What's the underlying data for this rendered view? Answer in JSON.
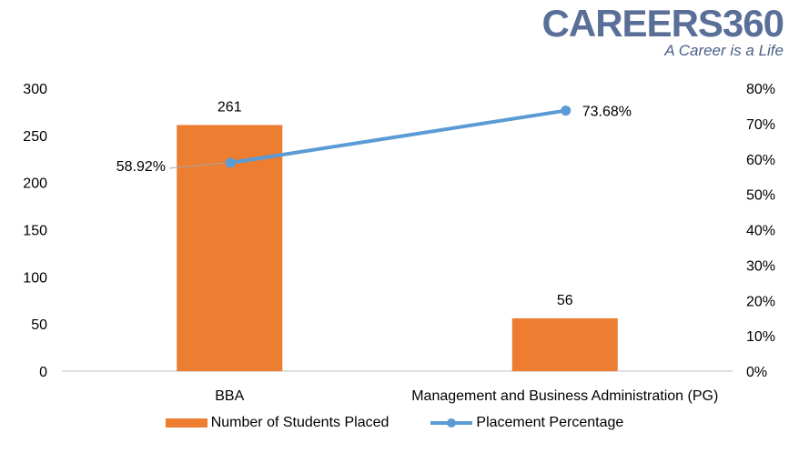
{
  "logo": {
    "brand": "CAREERS360",
    "tagline": "A Career is a Life"
  },
  "colors": {
    "bar": "#ED7D31",
    "line": "#5B9BD5",
    "axis": "#bfbfbf",
    "text": "#000000",
    "leader": "#a6a6a6"
  },
  "chart_data": {
    "type": "bar",
    "title": "",
    "categories": [
      "BBA",
      "Management and Business Administration (PG)"
    ],
    "series": [
      {
        "name": "Number of Students Placed",
        "type": "bar",
        "axis": "left",
        "values": [
          261,
          56
        ],
        "labels": [
          "261",
          "56"
        ]
      },
      {
        "name": "Placement Percentage",
        "type": "line",
        "axis": "right",
        "values": [
          58.92,
          73.68
        ],
        "labels": [
          "58.92%",
          "73.68%"
        ]
      }
    ],
    "y_left": {
      "min": 0,
      "max": 300,
      "ticks": [
        "0",
        "50",
        "100",
        "150",
        "200",
        "250",
        "300"
      ]
    },
    "y_right": {
      "min": 0,
      "max": 80,
      "ticks": [
        "0%",
        "10%",
        "20%",
        "30%",
        "40%",
        "50%",
        "60%",
        "70%",
        "80%"
      ]
    },
    "grid": false,
    "legend_position": "bottom"
  }
}
